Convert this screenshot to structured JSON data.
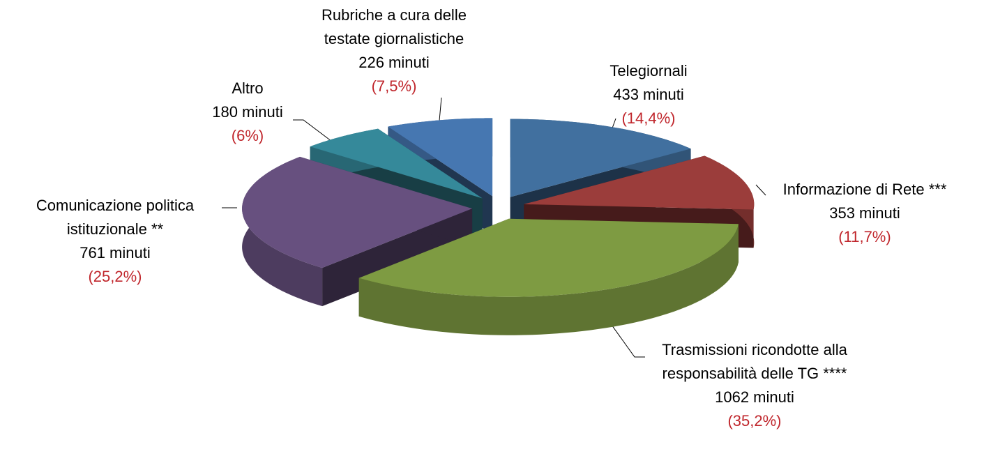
{
  "chart_data": {
    "type": "pie",
    "categories": [
      "Telegiornali",
      "Informazione di Rete ***",
      "Trasmissioni ricondotte alla responsabilità delle TG ****",
      "Comunicazione politica istituzionale **",
      "Altro",
      "Rubriche a cura delle testate giornalistiche"
    ],
    "values": [
      433,
      353,
      1062,
      761,
      180,
      226
    ],
    "value_labels": [
      "433 minuti",
      "353 minuti",
      "1062 minuti",
      "761 minuti",
      "180 minuti",
      "226 minuti"
    ],
    "shares": [
      14.4,
      11.7,
      35.2,
      25.2,
      6,
      7.5
    ],
    "share_labels": [
      "(14,4%)",
      "(11,7%)",
      "(35,2%)",
      "(25,2%)",
      "(6%)",
      "(7,5%)"
    ],
    "colors": [
      "#41709f",
      "#9b3d3b",
      "#7e9b42",
      "#67507f",
      "#35899a",
      "#4677b1"
    ]
  }
}
